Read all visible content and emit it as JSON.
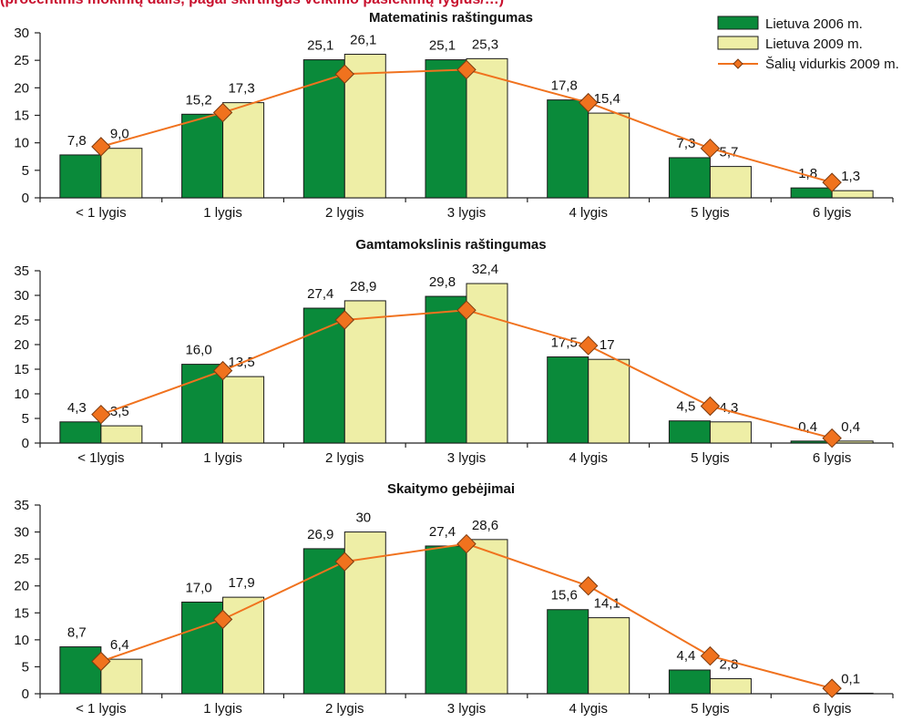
{
  "header": {
    "text": "(procentinis mokinių dalis, pagal skirtingus veikimo pasiekimų lygius/…)"
  },
  "legend": {
    "placement": "top-right",
    "items": [
      {
        "key": "lt2006",
        "label": "Lietuva 2006 m.",
        "kind": "bar",
        "color": "#0a8a3a"
      },
      {
        "key": "lt2009",
        "label": "Lietuva 2009 m.",
        "kind": "bar",
        "color": "#eeeea6"
      },
      {
        "key": "avg2009",
        "label": "Šalių vidurkis 2009 m.",
        "kind": "line",
        "color": "#f0721e"
      }
    ]
  },
  "colors": {
    "lt2006": "#0a8a3a",
    "lt2009": "#eeeea6",
    "avg_line": "#f0721e",
    "avg_marker": "#f0721e",
    "bar_outline": "#1a1a1a"
  },
  "chart_data": [
    {
      "type": "bar",
      "title": "Matematinis raštingumas",
      "categories": [
        "< 1 lygis",
        "1 lygis",
        "2 lygis",
        "3 lygis",
        "4 lygis",
        "5 lygis",
        "6 lygis"
      ],
      "ylim": [
        0,
        30
      ],
      "yticks": [
        0,
        5,
        10,
        15,
        20,
        25,
        30
      ],
      "series": [
        {
          "name": "Lietuva 2006 m.",
          "values": [
            7.8,
            15.2,
            25.1,
            25.1,
            17.8,
            7.3,
            1.8
          ],
          "labels": [
            "7,8",
            "15,2",
            "25,1",
            "25,1",
            "17,8",
            "7,3",
            "1,8"
          ]
        },
        {
          "name": "Lietuva 2009 m.",
          "values": [
            9.0,
            17.3,
            26.1,
            25.3,
            15.4,
            5.7,
            1.3
          ],
          "labels": [
            "9,0",
            "17,3",
            "26,1",
            "25,3",
            "15,4",
            "5,7",
            "1,3"
          ]
        },
        {
          "name": "Šalių vidurkis 2009 m.",
          "type": "line",
          "values": [
            9.3,
            15.5,
            22.5,
            23.3,
            17.3,
            9.0,
            2.8
          ]
        }
      ]
    },
    {
      "type": "bar",
      "title": "Gamtamokslinis raštingumas",
      "categories": [
        "< 1lygis",
        "1 lygis",
        "2 lygis",
        "3 lygis",
        "4 lygis",
        "5 lygis",
        "6 lygis"
      ],
      "ylim": [
        0,
        35
      ],
      "yticks": [
        0,
        5,
        10,
        15,
        20,
        25,
        30,
        35
      ],
      "series": [
        {
          "name": "Lietuva 2006 m.",
          "values": [
            4.3,
            16.0,
            27.4,
            29.8,
            17.5,
            4.5,
            0.4
          ],
          "labels": [
            "4,3",
            "16,0",
            "27,4",
            "29,8",
            "17,5",
            "4,5",
            "0,4"
          ]
        },
        {
          "name": "Lietuva 2009 m.",
          "values": [
            3.5,
            13.5,
            28.9,
            32.4,
            17.0,
            4.3,
            0.4
          ],
          "labels": [
            "3,5",
            "13,5",
            "28,9",
            "32,4",
            "17",
            "4,3",
            "0,4"
          ]
        },
        {
          "name": "Šalių vidurkis 2009 m.",
          "type": "line",
          "values": [
            5.8,
            14.7,
            25.0,
            27.0,
            19.8,
            7.5,
            1.0
          ]
        }
      ]
    },
    {
      "type": "bar",
      "title": "Skaitymo gebėjimai",
      "categories": [
        "< 1 lygis",
        "1 lygis",
        "2 lygis",
        "3 lygis",
        "4 lygis",
        "5 lygis",
        "6 lygis"
      ],
      "ylim": [
        0,
        35
      ],
      "yticks": [
        0,
        5,
        10,
        15,
        20,
        25,
        30,
        35
      ],
      "series": [
        {
          "name": "Lietuva 2006 m.",
          "values": [
            8.7,
            17.0,
            26.9,
            27.4,
            15.6,
            4.4,
            0.0
          ],
          "labels": [
            "8,7",
            "17,0",
            "26,9",
            "27,4",
            "15,6",
            "4,4",
            ""
          ]
        },
        {
          "name": "Lietuva 2009 m.",
          "values": [
            6.4,
            17.9,
            30.0,
            28.6,
            14.1,
            2.8,
            0.1
          ],
          "labels": [
            "6,4",
            "17,9",
            "30",
            "28,6",
            "14,1",
            "2,8",
            "0,1"
          ]
        },
        {
          "name": "Šalių vidurkis 2009 m.",
          "type": "line",
          "values": [
            6.0,
            13.8,
            24.5,
            27.8,
            20.0,
            7.0,
            1.0
          ]
        }
      ]
    }
  ]
}
